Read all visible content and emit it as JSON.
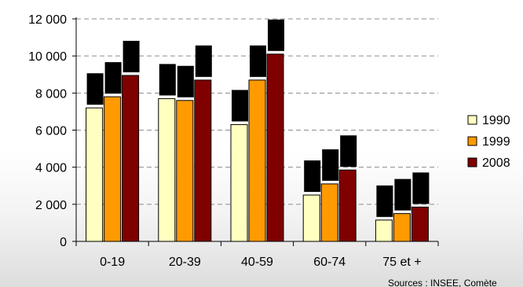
{
  "chart_data": {
    "type": "bar",
    "categories": [
      "0-19",
      "20-39",
      "40-59",
      "60-74",
      "75 et +"
    ],
    "series": [
      {
        "name": "1990",
        "color": "#ffffc0",
        "values": [
          7200,
          7700,
          6300,
          2500,
          1150
        ]
      },
      {
        "name": "1999",
        "color": "#ff9a00",
        "values": [
          7800,
          7600,
          8700,
          3100,
          1500
        ]
      },
      {
        "name": "2008",
        "color": "#800000",
        "values": [
          8950,
          8700,
          10100,
          3850,
          1850
        ]
      }
    ],
    "ylim": [
      0,
      12000
    ],
    "yticks": [
      0,
      2000,
      4000,
      6000,
      8000,
      10000,
      12000
    ],
    "ytick_labels": [
      "0",
      "2 000",
      "4 000",
      "6 000",
      "8 000",
      "10 000",
      "12 000"
    ],
    "grid": true,
    "legend_position": "right",
    "source": "Sources : INSEE, Comète"
  }
}
